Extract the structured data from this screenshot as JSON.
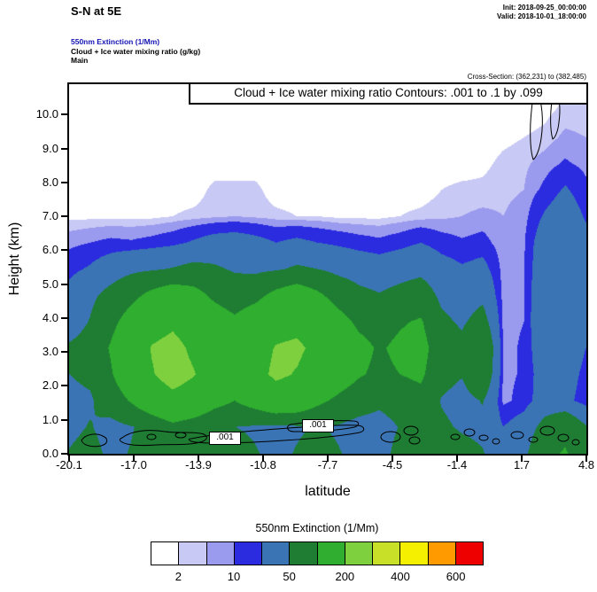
{
  "header": {
    "title": "S-N at 5E",
    "init": "Init: 2018-09-25_00:00:00",
    "valid": "Valid: 2018-10-01_18:00:00",
    "fields": [
      "550nm Extinction  (1/Mm)",
      "Cloud + Ice water mixing ratio  (g/kg)",
      "Main"
    ],
    "cross_section": "Cross-Section: (362,231) to (382,485)"
  },
  "plot": {
    "annotation": "Cloud + Ice water mixing ratio Contours: .001 to .1 by .099",
    "contour_labels": [
      ".001",
      ".001"
    ],
    "xlabel": "latitude",
    "ylabel": "Height (km)"
  },
  "legend": {
    "title": "550nm Extinction  (1/Mm)",
    "tick_labels": [
      "2",
      "10",
      "50",
      "200",
      "400",
      "600"
    ],
    "tick_positions": [
      1,
      3,
      5,
      7,
      9,
      11
    ]
  },
  "chart_data": {
    "type": "heatmap",
    "title": "S-N at 5E",
    "subtitle": "550nm Extinction (1/Mm) filled contours with Cloud + Ice water mixing ratio (g/kg) line contours .001 to .1 by .099",
    "xlabel": "latitude",
    "ylabel": "Height (km)",
    "x_ticks": [
      "-20.1",
      "-17.0",
      "-13.9",
      "-10.8",
      "-7.7",
      "-4.5",
      "-1.4",
      "1.7",
      "4.8"
    ],
    "y_ticks": [
      "0.0",
      "1.0",
      "2.0",
      "3.0",
      "4.0",
      "5.0",
      "6.0",
      "7.0",
      "8.0",
      "9.0",
      "10.0"
    ],
    "xlim": [
      -20.1,
      4.8
    ],
    "ylim": [
      0,
      10.9
    ],
    "grid_on": false,
    "legend_position": "bottom",
    "levels": [
      2,
      5,
      10,
      20,
      50,
      100,
      200,
      300,
      400,
      500,
      600
    ],
    "colors": [
      "#ffffff",
      "#c9c9f5",
      "#9a9aee",
      "#2b2be0",
      "#3a74b4",
      "#1e7d32",
      "#2fae2f",
      "#7fd03f",
      "#c8e028",
      "#f5f000",
      "#ff9a00",
      "#ee0000"
    ],
    "overlay_contours": {
      "field": "Cloud + Ice water mixing ratio (g/kg)",
      "levels": [
        0.001,
        0.1
      ],
      "label": ".001"
    },
    "grid": {
      "lats": [
        -20.1,
        -19.1,
        -18.1,
        -17.1,
        -16.1,
        -15.1,
        -14.1,
        -13.1,
        -12.1,
        -11.1,
        -10.1,
        -9.1,
        -8.1,
        -7.1,
        -6.1,
        -5.1,
        -4.1,
        -3.1,
        -2.1,
        -1.1,
        -0.1,
        0.9,
        1.9,
        2.9,
        3.9,
        4.8
      ],
      "heights": [
        10.9,
        10.1,
        9.3,
        8.5,
        7.7,
        6.9,
        6.1,
        5.3,
        4.5,
        3.7,
        2.9,
        2.1,
        1.4,
        0.7,
        0.0
      ],
      "values": [
        [
          0,
          0,
          0,
          0,
          0,
          0,
          0,
          0,
          0,
          0,
          0,
          0,
          0,
          0,
          0,
          0,
          0,
          0,
          0,
          0,
          0,
          0,
          0,
          0,
          1,
          1
        ],
        [
          0,
          0,
          0,
          0,
          0,
          0,
          0,
          0,
          0,
          0,
          0,
          0,
          0,
          0,
          0,
          0,
          0,
          0,
          0,
          0,
          0,
          0,
          0,
          1,
          3,
          3
        ],
        [
          0,
          0,
          0,
          0,
          0,
          0,
          0,
          0,
          0,
          0,
          0,
          0,
          0,
          0,
          0,
          0,
          0,
          0,
          0,
          0,
          0,
          1,
          2,
          3,
          6,
          5
        ],
        [
          0,
          0,
          0,
          0,
          0,
          0,
          0,
          0,
          0,
          0,
          0,
          0,
          0,
          0,
          0,
          0,
          0,
          0,
          0,
          0,
          1,
          3,
          4,
          7,
          11,
          8
        ],
        [
          0,
          0,
          0,
          0,
          0,
          0,
          0,
          3,
          3,
          3,
          0,
          0,
          0,
          0,
          0,
          0,
          0,
          0,
          2,
          3,
          3,
          4,
          5,
          12,
          22,
          12
        ],
        [
          1,
          1,
          1,
          1,
          1,
          2,
          3,
          4,
          5,
          4,
          3,
          2,
          2,
          1,
          1,
          1,
          2,
          3,
          4,
          5,
          6,
          5,
          7,
          22,
          32,
          18
        ],
        [
          8,
          10,
          12,
          11,
          13,
          16,
          22,
          28,
          30,
          26,
          20,
          24,
          20,
          17,
          14,
          12,
          15,
          20,
          14,
          11,
          13,
          6,
          9,
          32,
          42,
          26
        ],
        [
          16,
          22,
          32,
          42,
          46,
          52,
          60,
          55,
          46,
          42,
          46,
          55,
          50,
          40,
          34,
          30,
          35,
          40,
          28,
          22,
          26,
          7,
          9,
          36,
          46,
          30
        ],
        [
          26,
          42,
          62,
          85,
          115,
          135,
          120,
          90,
          72,
          85,
          115,
          135,
          110,
          80,
          60,
          52,
          62,
          72,
          42,
          32,
          42,
          7,
          9,
          40,
          45,
          30
        ],
        [
          32,
          52,
          85,
          125,
          165,
          185,
          160,
          130,
          110,
          135,
          165,
          175,
          150,
          120,
          90,
          80,
          95,
          105,
          58,
          45,
          65,
          8,
          10,
          40,
          40,
          25
        ],
        [
          55,
          65,
          105,
          155,
          205,
          225,
          185,
          150,
          130,
          165,
          205,
          215,
          180,
          150,
          115,
          95,
          110,
          120,
          70,
          60,
          95,
          8,
          11,
          35,
          35,
          20
        ],
        [
          50,
          58,
          95,
          145,
          195,
          235,
          205,
          160,
          140,
          175,
          215,
          195,
          160,
          130,
          105,
          90,
          100,
          110,
          62,
          52,
          85,
          8,
          11,
          30,
          30,
          15
        ],
        [
          40,
          45,
          72,
          105,
          145,
          175,
          155,
          120,
          100,
          125,
          155,
          145,
          112,
          90,
          72,
          60,
          72,
          82,
          48,
          38,
          52,
          8,
          13,
          30,
          26,
          12
        ],
        [
          42,
          52,
          38,
          48,
          62,
          85,
          72,
          56,
          50,
          46,
          42,
          46,
          52,
          46,
          36,
          32,
          52,
          72,
          56,
          46,
          42,
          20,
          30,
          62,
          85,
          52
        ],
        [
          52,
          62,
          42,
          52,
          62,
          72,
          62,
          52,
          62,
          52,
          42,
          52,
          62,
          52,
          42,
          36,
          62,
          85,
          72,
          62,
          52,
          32,
          42,
          85,
          105,
          62
        ]
      ]
    }
  }
}
